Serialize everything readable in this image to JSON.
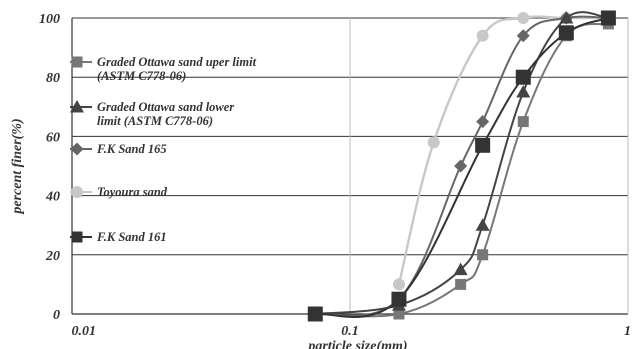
{
  "chart_data": {
    "type": "line",
    "title": "",
    "xlabel": "particle size(mm)",
    "ylabel": "percent finer(%)",
    "xscale": "log",
    "xlim": [
      0.01,
      1
    ],
    "ylim": [
      0,
      100
    ],
    "x_ticks": [
      "0.01",
      "0.1",
      "1"
    ],
    "y_ticks": [
      "0",
      "20",
      "40",
      "60",
      "80",
      "100"
    ],
    "grid": "horizontal",
    "legend_position": "left-inside",
    "series": [
      {
        "name": "Graded Ottawa sand uper limit (ASTM C778-06)",
        "legend_lines": [
          "Graded Ottawa sand uper limit",
          "(ASTM C778-06)"
        ],
        "marker": "square",
        "color": "#777777",
        "x": [
          0.075,
          0.15,
          0.25,
          0.3,
          0.42,
          0.6,
          0.85
        ],
        "y": [
          0,
          0,
          10,
          20,
          65,
          94,
          98
        ]
      },
      {
        "name": "Graded Ottawa sand lower limit (ASTM C778-06)",
        "legend_lines": [
          "Graded Ottawa sand lower",
          "limit (ASTM C778-06)"
        ],
        "marker": "triangle",
        "color": "#444444",
        "x": [
          0.075,
          0.15,
          0.25,
          0.3,
          0.42,
          0.6,
          0.85
        ],
        "y": [
          0,
          3,
          15,
          30,
          75,
          100,
          100
        ]
      },
      {
        "name": "F.K Sand 165",
        "legend_lines": [
          "F.K Sand 165"
        ],
        "marker": "diamond",
        "color": "#666666",
        "x": [
          0.075,
          0.15,
          0.25,
          0.3,
          0.42,
          0.6,
          0.85
        ],
        "y": [
          0,
          5,
          50,
          65,
          94,
          100,
          100
        ]
      },
      {
        "name": "Toyoura sand",
        "legend_lines": [
          "Toyoura sand"
        ],
        "marker": "circle",
        "color": "#c8c8c8",
        "x": [
          0.15,
          0.2,
          0.3,
          0.42,
          0.6,
          0.85
        ],
        "y": [
          10,
          58,
          94,
          100,
          100,
          100
        ]
      },
      {
        "name": "F.K Sand 161",
        "legend_lines": [
          "F.K Sand 161"
        ],
        "marker": "square-large",
        "color": "#333333",
        "x": [
          0.075,
          0.15,
          0.3,
          0.42,
          0.6,
          0.85
        ],
        "y": [
          0,
          5,
          57,
          80,
          95,
          100
        ]
      }
    ]
  }
}
